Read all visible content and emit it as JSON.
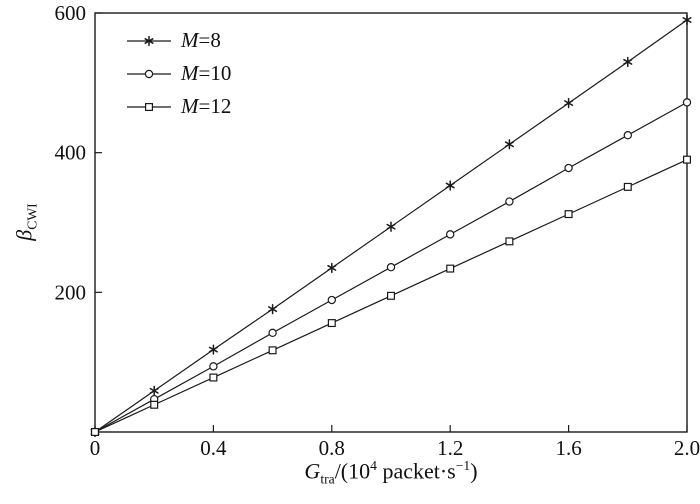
{
  "chart_data": {
    "type": "line",
    "x": [
      0,
      0.2,
      0.4,
      0.6,
      0.8,
      1.0,
      1.2,
      1.4,
      1.6,
      1.8,
      2.0
    ],
    "series": [
      {
        "name": "M=8",
        "marker": "star",
        "values": [
          0,
          59,
          118,
          176,
          235,
          294,
          353,
          412,
          471,
          530,
          590
        ]
      },
      {
        "name": "M=10",
        "marker": "circle",
        "values": [
          0,
          47,
          94,
          142,
          189,
          236,
          283,
          330,
          378,
          425,
          472
        ]
      },
      {
        "name": "M=12",
        "marker": "square",
        "values": [
          0,
          39,
          78,
          117,
          156,
          195,
          234,
          273,
          312,
          351,
          390
        ]
      }
    ],
    "xlabel": "G_tra/(10^4 packet·s^-1)",
    "ylabel": "β_CWI",
    "xlim": [
      0,
      2.0
    ],
    "ylim": [
      0,
      600
    ],
    "x_ticks": [
      0,
      0.4,
      0.8,
      1.2,
      1.6,
      2.0
    ],
    "x_tick_labels": [
      "0",
      "0.4",
      "0.8",
      "1.2",
      "1.6",
      "2.0"
    ],
    "y_ticks": [
      200,
      400,
      600
    ],
    "y_tick_labels": [
      "200",
      "400",
      "600"
    ],
    "grid": false,
    "legend_position": "top-left",
    "line_color": "#1a1a1a"
  },
  "labels": {
    "ylabel": {
      "main": "β",
      "sub": "CWI"
    },
    "xlabel": {
      "var": "G",
      "sub": "tra",
      "mid": "/(10",
      "sup": "4",
      "unit": " packet·s",
      "sup2": "−1",
      "end": ")"
    }
  },
  "legend": {
    "entries": [
      {
        "var": "M",
        "rest": "=8"
      },
      {
        "var": "M",
        "rest": "=10"
      },
      {
        "var": "M",
        "rest": "=12"
      }
    ]
  },
  "colors": {
    "background": "#ffffff",
    "line": "#1a1a1a",
    "text": "#111111"
  }
}
